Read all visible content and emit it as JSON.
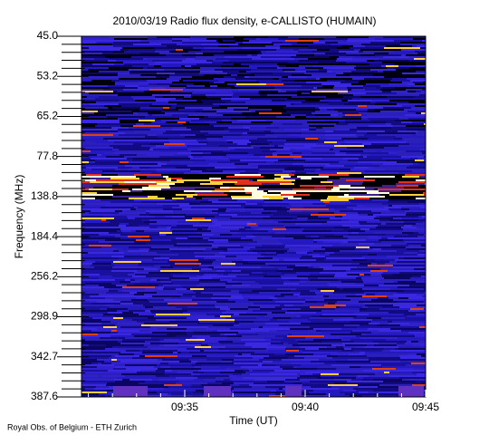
{
  "chart_data": {
    "type": "spectrogram",
    "title": "2010/03/19  Radio flux density, e-CALLISTO (HUMAIN)",
    "y_label": "Frequency (MHz)",
    "x_label": "Time (UT)",
    "y_categories": [
      "45.0",
      "53.2",
      "65.2",
      "77.8",
      "138.8",
      "184.4",
      "256.2",
      "298.9",
      "342.7",
      "387.6"
    ],
    "x_tick_labels": [
      "09:35",
      "09:40",
      "09:45"
    ],
    "credit": "Royal Obs. of Belgium - ETH Zurich"
  }
}
